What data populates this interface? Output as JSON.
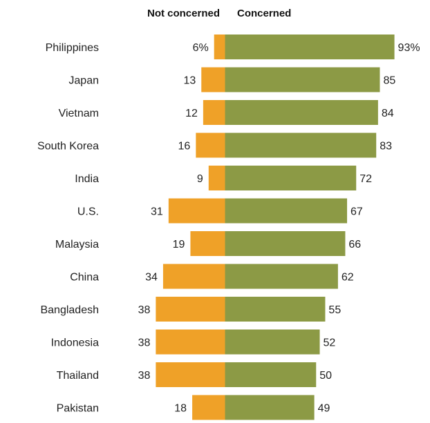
{
  "chart_data": {
    "type": "bar",
    "orientation": "horizontal-diverging",
    "legend": {
      "not_concerned_label": "Not concerned",
      "concerned_label": "Concerned"
    },
    "colors": {
      "not_concerned": "#EFA128",
      "concerned": "#8C9A45"
    },
    "categories": [
      "Philippines",
      "Japan",
      "Vietnam",
      "South Korea",
      "India",
      "U.S.",
      "Malaysia",
      "China",
      "Bangladesh",
      "Indonesia",
      "Thailand",
      "Pakistan"
    ],
    "series": [
      {
        "name": "Not concerned",
        "values": [
          6,
          13,
          12,
          16,
          9,
          31,
          19,
          34,
          38,
          38,
          38,
          18
        ],
        "labels": [
          "6%",
          "13",
          "12",
          "16",
          "9",
          "31",
          "19",
          "34",
          "38",
          "38",
          "38",
          "18"
        ]
      },
      {
        "name": "Concerned",
        "values": [
          93,
          85,
          84,
          83,
          72,
          67,
          66,
          62,
          55,
          52,
          50,
          49
        ],
        "labels": [
          "93%",
          "85",
          "84",
          "83",
          "72",
          "67",
          "66",
          "62",
          "55",
          "52",
          "50",
          "49"
        ]
      }
    ],
    "grid": false
  }
}
